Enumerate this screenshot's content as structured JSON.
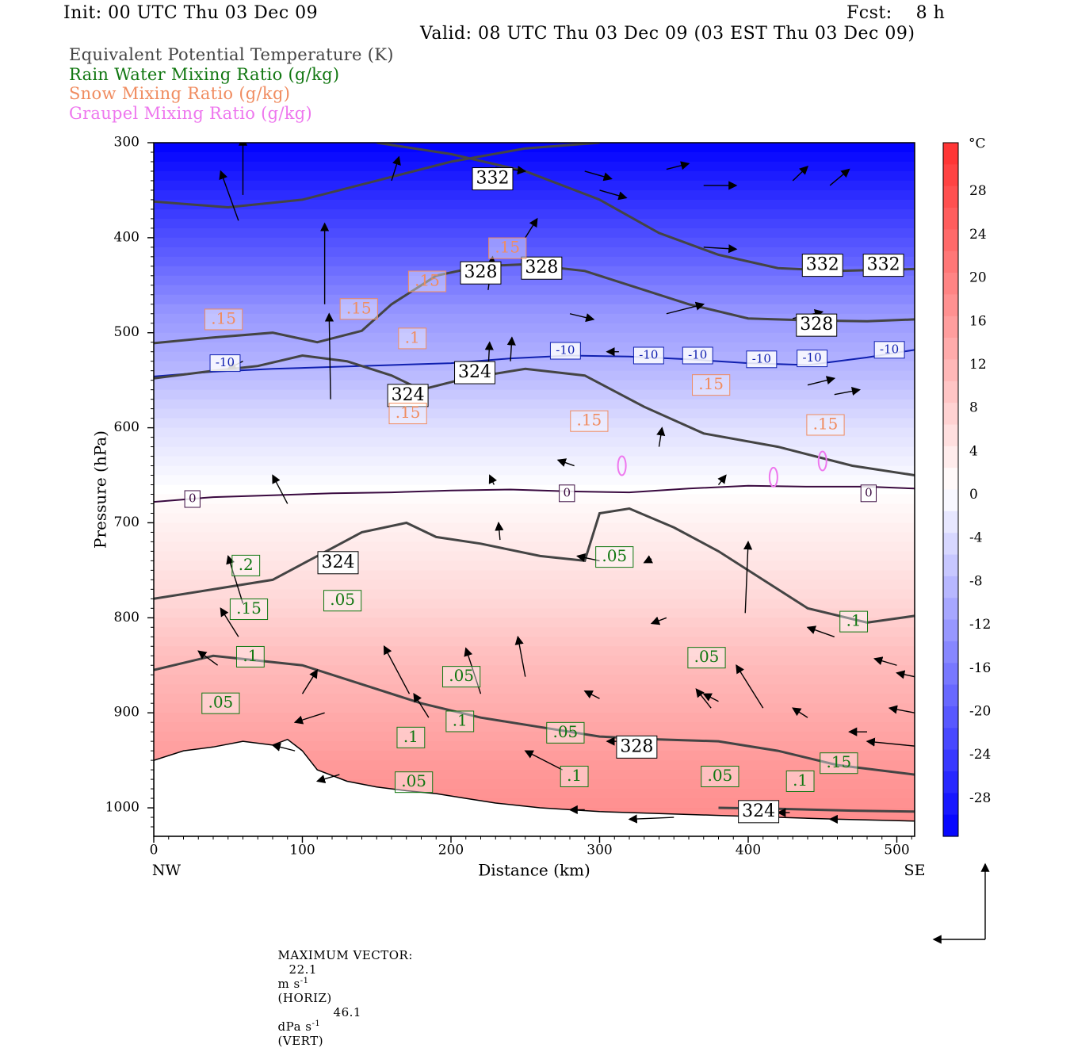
{
  "header": {
    "init": "Init: 00 UTC Thu 03 Dec 09",
    "fcst": "Fcst:    8 h",
    "valid": "Valid: 08 UTC Thu 03 Dec 09 (03 EST Thu 03 Dec 09)"
  },
  "legend": [
    {
      "label": "Equivalent Potential Temperature (K)",
      "color": "#444444"
    },
    {
      "label": "Rain Water Mixing Ratio (g/kg)",
      "color": "#117711"
    },
    {
      "label": "Snow Mixing Ratio (g/kg)",
      "color": "#f08c60"
    },
    {
      "label": "Graupel Mixing Ratio (g/kg)",
      "color": "#ee77ee"
    }
  ],
  "chart_data": {
    "type": "cross-section",
    "xlabel": "Distance (km)",
    "ylabel": "Pressure (hPa)",
    "xlim": [
      0,
      512
    ],
    "ylim": [
      1030,
      300
    ],
    "x_ticks": [
      "0",
      "100",
      "200",
      "300",
      "400",
      "500"
    ],
    "y_ticks": [
      "300",
      "400",
      "500",
      "600",
      "700",
      "800",
      "900",
      "1000"
    ],
    "x_end_labels": {
      "left": "NW",
      "right": "SE"
    },
    "colorbar": {
      "unit": "°C",
      "min": -32,
      "max": 32,
      "ticks": [
        "28",
        "24",
        "20",
        "16",
        "12",
        "8",
        "4",
        "0",
        "-4",
        "-8",
        "-12",
        "-16",
        "-20",
        "-24",
        "-28"
      ],
      "cold_color": "#0000ff",
      "neutral_color": "#ffffff",
      "warm_color": "#ff3030"
    },
    "temperature_isotherms": [
      {
        "value": 0,
        "label": "0",
        "color": "#3a0a40",
        "points": [
          [
            0,
            678
          ],
          [
            40,
            673
          ],
          [
            80,
            671
          ],
          [
            120,
            669
          ],
          [
            160,
            668
          ],
          [
            200,
            666
          ],
          [
            240,
            665
          ],
          [
            280,
            667
          ],
          [
            320,
            668
          ],
          [
            360,
            664
          ],
          [
            400,
            661
          ],
          [
            440,
            662
          ],
          [
            480,
            662
          ],
          [
            512,
            664
          ]
        ],
        "label_at": [
          [
            26,
            675
          ],
          [
            278,
            669
          ],
          [
            481,
            669
          ]
        ]
      },
      {
        "value": -10,
        "label": "-10",
        "color": "#1020b0",
        "points": [
          [
            0,
            546
          ],
          [
            40,
            541
          ],
          [
            80,
            538
          ],
          [
            120,
            536
          ],
          [
            160,
            534
          ],
          [
            200,
            532
          ],
          [
            240,
            527
          ],
          [
            280,
            524
          ],
          [
            320,
            525
          ],
          [
            360,
            528
          ],
          [
            400,
            532
          ],
          [
            440,
            534
          ],
          [
            480,
            526
          ],
          [
            512,
            518
          ]
        ],
        "label_at": [
          [
            48,
            532
          ],
          [
            277,
            519
          ],
          [
            333,
            524
          ],
          [
            366,
            524
          ],
          [
            409,
            528
          ],
          [
            443,
            527
          ],
          [
            495,
            518
          ]
        ]
      }
    ],
    "theta_e_contours": [
      {
        "value": 332,
        "label": "332",
        "points": [
          [
            0,
            362
          ],
          [
            50,
            368
          ],
          [
            100,
            360
          ],
          [
            150,
            340
          ],
          [
            200,
            320
          ],
          [
            250,
            306
          ],
          [
            300,
            300
          ]
        ],
        "label_at": [
          [
            228,
            338
          ]
        ]
      },
      {
        "value": 332,
        "label": "332",
        "points": [
          [
            150,
            300
          ],
          [
            200,
            312
          ],
          [
            250,
            330
          ],
          [
            300,
            360
          ],
          [
            340,
            395
          ],
          [
            380,
            418
          ],
          [
            420,
            432
          ],
          [
            460,
            435
          ],
          [
            512,
            433
          ]
        ],
        "label_at": [
          [
            450,
            429
          ],
          [
            491,
            429
          ]
        ]
      },
      {
        "value": 328,
        "label": "328",
        "points": [
          [
            0,
            511
          ],
          [
            40,
            505
          ],
          [
            80,
            500
          ],
          [
            110,
            510
          ],
          [
            140,
            498
          ],
          [
            160,
            470
          ],
          [
            190,
            440
          ],
          [
            220,
            430
          ],
          [
            250,
            428
          ],
          [
            290,
            435
          ],
          [
            320,
            450
          ],
          [
            360,
            470
          ],
          [
            400,
            485
          ],
          [
            440,
            487
          ],
          [
            480,
            488
          ],
          [
            512,
            486
          ]
        ],
        "label_at": [
          [
            220,
            437
          ],
          [
            261,
            432
          ],
          [
            446,
            492
          ]
        ]
      },
      {
        "value": 324,
        "label": "324",
        "points": [
          [
            0,
            548
          ],
          [
            40,
            540
          ],
          [
            70,
            535
          ],
          [
            100,
            524
          ],
          [
            130,
            530
          ],
          [
            160,
            545
          ],
          [
            180,
            560
          ],
          [
            210,
            548
          ],
          [
            250,
            538
          ],
          [
            290,
            545
          ],
          [
            330,
            578
          ],
          [
            370,
            606
          ],
          [
            420,
            620
          ],
          [
            470,
            640
          ],
          [
            512,
            650
          ]
        ],
        "label_at": [
          [
            171,
            566
          ],
          [
            216,
            542
          ]
        ]
      },
      {
        "value": 324,
        "label": "324",
        "points": [
          [
            0,
            780
          ],
          [
            40,
            770
          ],
          [
            80,
            760
          ],
          [
            110,
            735
          ],
          [
            140,
            710
          ],
          [
            170,
            700
          ],
          [
            190,
            715
          ],
          [
            220,
            722
          ],
          [
            260,
            735
          ],
          [
            290,
            740
          ],
          [
            300,
            690
          ],
          [
            320,
            685
          ],
          [
            350,
            705
          ],
          [
            380,
            730
          ],
          [
            410,
            760
          ],
          [
            440,
            790
          ],
          [
            480,
            805
          ],
          [
            512,
            798
          ]
        ],
        "label_at": [
          [
            124,
            742
          ]
        ]
      },
      {
        "value": 328,
        "label": "328",
        "points": [
          [
            0,
            855
          ],
          [
            40,
            840
          ],
          [
            70,
            845
          ],
          [
            100,
            850
          ],
          [
            140,
            870
          ],
          [
            180,
            890
          ],
          [
            220,
            905
          ],
          [
            260,
            915
          ],
          [
            300,
            925
          ],
          [
            340,
            928
          ],
          [
            380,
            930
          ],
          [
            420,
            940
          ],
          [
            460,
            955
          ],
          [
            512,
            965
          ]
        ],
        "label_at": [
          [
            325,
            936
          ]
        ]
      },
      {
        "value": 324,
        "label": "324",
        "points": [
          [
            380,
            1000
          ],
          [
            420,
            1001
          ],
          [
            470,
            1003
          ],
          [
            512,
            1004
          ]
        ],
        "label_at": [
          [
            407,
            1004
          ]
        ]
      }
    ],
    "rain_mixing_ratio_labels": [
      {
        "label": ".2",
        "at": [
          62,
          745
        ]
      },
      {
        "label": ".15",
        "at": [
          64,
          791
        ]
      },
      {
        "label": ".1",
        "at": [
          65,
          841
        ]
      },
      {
        "label": ".05",
        "at": [
          45,
          890
        ]
      },
      {
        "label": ".05",
        "at": [
          127,
          782
        ]
      },
      {
        "label": ".1",
        "at": [
          173,
          926
        ]
      },
      {
        "label": ".05",
        "at": [
          175,
          973
        ]
      },
      {
        "label": ".05",
        "at": [
          207,
          862
        ]
      },
      {
        "label": ".1",
        "at": [
          206,
          909
        ]
      },
      {
        "label": ".05",
        "at": [
          277,
          921
        ]
      },
      {
        "label": ".1",
        "at": [
          283,
          967
        ]
      },
      {
        "label": ".05",
        "at": [
          310,
          736
        ]
      },
      {
        "label": ".05",
        "at": [
          372,
          842
        ]
      },
      {
        "label": ".05",
        "at": [
          381,
          967
        ]
      },
      {
        "label": ".1",
        "at": [
          435,
          972
        ]
      },
      {
        "label": ".1",
        "at": [
          471,
          804
        ]
      },
      {
        "label": ".15",
        "at": [
          461,
          953
        ]
      }
    ],
    "snow_mixing_ratio_labels": [
      {
        "label": ".15",
        "at": [
          47,
          486
        ]
      },
      {
        "label": ".15",
        "at": [
          138,
          475
        ]
      },
      {
        "label": ".15",
        "at": [
          184,
          446
        ]
      },
      {
        "label": ".15",
        "at": [
          238,
          411
        ]
      },
      {
        "label": ".1",
        "at": [
          174,
          506
        ]
      },
      {
        "label": ".15",
        "at": [
          171,
          585
        ]
      },
      {
        "label": ".15",
        "at": [
          293,
          593
        ]
      },
      {
        "label": ".15",
        "at": [
          375,
          555
        ]
      },
      {
        "label": ".15",
        "at": [
          452,
          597
        ]
      }
    ],
    "graupel_cells": [
      {
        "at": [
          417,
          652
        ]
      },
      {
        "at": [
          315,
          640
        ]
      },
      {
        "at": [
          450,
          635
        ]
      }
    ],
    "vectors": [
      [
        60,
        355,
        60,
        295
      ],
      [
        57,
        382,
        45,
        330
      ],
      [
        115,
        470,
        115,
        385
      ],
      [
        119,
        570,
        118,
        480
      ],
      [
        160,
        340,
        165,
        315
      ],
      [
        60,
        530,
        50,
        538
      ],
      [
        230,
        326,
        250,
        330
      ],
      [
        290,
        330,
        308,
        338
      ],
      [
        300,
        350,
        318,
        358
      ],
      [
        345,
        328,
        360,
        322
      ],
      [
        370,
        345,
        392,
        345
      ],
      [
        430,
        340,
        440,
        325
      ],
      [
        455,
        345,
        468,
        328
      ],
      [
        480,
        430,
        494,
        432
      ],
      [
        370,
        410,
        392,
        412
      ],
      [
        430,
        485,
        450,
        478
      ],
      [
        280,
        480,
        296,
        486
      ],
      [
        345,
        480,
        370,
        470
      ],
      [
        440,
        555,
        458,
        548
      ],
      [
        458,
        565,
        475,
        560
      ],
      [
        250,
        400,
        258,
        380
      ],
      [
        225,
        455,
        228,
        420
      ],
      [
        225,
        540,
        226,
        510
      ],
      [
        240,
        530,
        241,
        505
      ],
      [
        90,
        680,
        80,
        650
      ],
      [
        60,
        785,
        50,
        735
      ],
      [
        57,
        820,
        45,
        790
      ],
      [
        43,
        850,
        30,
        835
      ],
      [
        100,
        880,
        110,
        855
      ],
      [
        95,
        940,
        80,
        934
      ],
      [
        115,
        900,
        95,
        910
      ],
      [
        125,
        965,
        110,
        972
      ],
      [
        185,
        905,
        175,
        880
      ],
      [
        172,
        880,
        155,
        830
      ],
      [
        220,
        880,
        210,
        832
      ],
      [
        250,
        862,
        245,
        820
      ],
      [
        300,
        885,
        290,
        877
      ],
      [
        275,
        960,
        250,
        940
      ],
      [
        330,
        930,
        305,
        930
      ],
      [
        380,
        888,
        370,
        880
      ],
      [
        375,
        895,
        365,
        875
      ],
      [
        398,
        795,
        400,
        720
      ],
      [
        410,
        895,
        392,
        850
      ],
      [
        440,
        905,
        430,
        895
      ],
      [
        480,
        920,
        468,
        920
      ],
      [
        512,
        935,
        480,
        930
      ],
      [
        512,
        900,
        495,
        895
      ],
      [
        512,
        862,
        500,
        858
      ],
      [
        500,
        850,
        485,
        843
      ],
      [
        458,
        820,
        440,
        810
      ],
      [
        460,
        1012,
        455,
        1012
      ],
      [
        428,
        1005,
        420,
        1005
      ],
      [
        350,
        1010,
        320,
        1012
      ],
      [
        290,
        1002,
        280,
        1002
      ],
      [
        300,
        740,
        285,
        735
      ],
      [
        335,
        738,
        330,
        742
      ],
      [
        345,
        800,
        335,
        806
      ],
      [
        233,
        718,
        232,
        700
      ],
      [
        229,
        660,
        226,
        650
      ],
      [
        283,
        640,
        272,
        634
      ],
      [
        313,
        520,
        305,
        520
      ],
      [
        340,
        620,
        342,
        600
      ],
      [
        380,
        660,
        385,
        650
      ]
    ],
    "max_vector": {
      "label": "MAXIMUM VECTOR:",
      "horiz_value": "22.1",
      "horiz_unit": "m s",
      "horiz_exp": "-1",
      "horiz_tag": "(HORIZ)",
      "vert_value": "46.1",
      "vert_unit": "dPa s",
      "vert_exp": "-1",
      "vert_tag": "(VERT)"
    },
    "terrain": [
      [
        0,
        950
      ],
      [
        20,
        940
      ],
      [
        40,
        936
      ],
      [
        60,
        930
      ],
      [
        80,
        934
      ],
      [
        90,
        928
      ],
      [
        100,
        940
      ],
      [
        110,
        960
      ],
      [
        130,
        972
      ],
      [
        150,
        978
      ],
      [
        170,
        982
      ],
      [
        190,
        985
      ],
      [
        210,
        990
      ],
      [
        230,
        995
      ],
      [
        260,
        1000
      ],
      [
        300,
        1004
      ],
      [
        340,
        1006
      ],
      [
        380,
        1008
      ],
      [
        420,
        1010
      ],
      [
        460,
        1012
      ],
      [
        512,
        1014
      ]
    ]
  }
}
